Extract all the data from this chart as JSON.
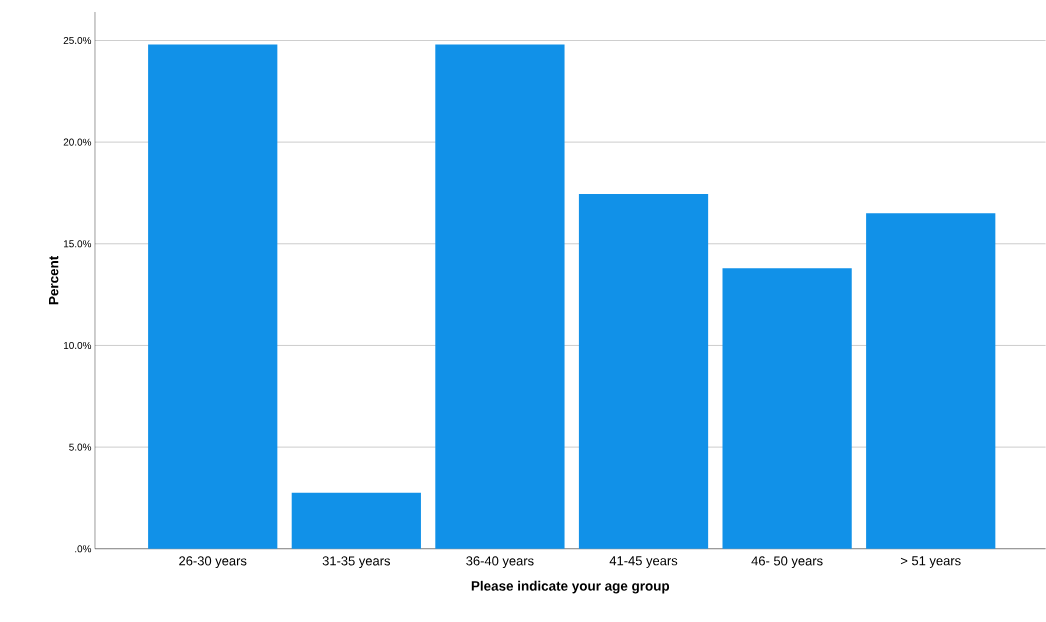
{
  "chart_data": {
    "type": "bar",
    "xlabel": "Please indicate your age group",
    "ylabel": "Percent",
    "categories": [
      "26-30 years",
      "31-35 years",
      "36-40 years",
      "41-45 years",
      "46- 50 years",
      "> 51 years"
    ],
    "values": [
      24.8,
      2.75,
      24.8,
      17.45,
      13.8,
      16.5
    ],
    "color": "#1191e8",
    "ylim": [
      0,
      26.4
    ],
    "yticks": [
      {
        "value": 0,
        "label": ".0%"
      },
      {
        "value": 5,
        "label": "5.0%"
      },
      {
        "value": 10,
        "label": "10.0%"
      },
      {
        "value": 15,
        "label": "15.0%"
      },
      {
        "value": 20,
        "label": "20.0%"
      },
      {
        "value": 25,
        "label": "25.0%"
      }
    ],
    "grid": "y"
  }
}
